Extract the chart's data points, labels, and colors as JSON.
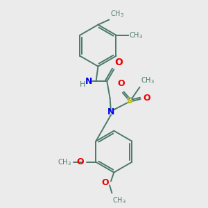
{
  "bg_color": "#ebebeb",
  "bond_color": "#4a7a6a",
  "n_color": "#0000ee",
  "o_color": "#ee0000",
  "s_color": "#bbbb00",
  "lw": 1.4,
  "figsize": [
    3.0,
    3.0
  ],
  "dpi": 100,
  "xlim": [
    0,
    10
  ],
  "ylim": [
    0,
    10
  ]
}
